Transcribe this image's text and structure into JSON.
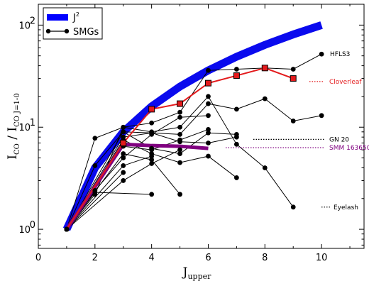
{
  "chart_data": {
    "type": "line",
    "xlabel": "J",
    "xlabel_sub": "upper",
    "ylabel_main": "I",
    "ylabel_sub1": "CO",
    "ylabel_mid": " / I",
    "ylabel_sub2": "CO J=1-0",
    "xlim": [
      0,
      11.5
    ],
    "ylim_log": [
      0.65,
      160
    ],
    "x_ticks": [
      0,
      2,
      4,
      6,
      8,
      10
    ],
    "x_tick_labels": [
      "0",
      "2",
      "4",
      "6",
      "8",
      "10"
    ],
    "y_ticks": [
      1,
      10,
      100
    ],
    "y_tick_labels": [
      "10",
      "10",
      "10"
    ],
    "y_tick_exponents": [
      "0",
      "1",
      "2"
    ],
    "y_scale": "log",
    "legend": {
      "placement": "top-left",
      "entries": [
        {
          "label": "J",
          "label_sup": "2",
          "color": "#0000ff"
        },
        {
          "label": "SMGs",
          "color": "#000000"
        }
      ]
    },
    "reference_curve": {
      "name": "J2",
      "color": "#0a0aee",
      "x": [
        1,
        2,
        3,
        4,
        5,
        6,
        7,
        8,
        9,
        10
      ],
      "y": [
        1,
        4,
        9,
        16,
        25,
        36,
        49,
        64,
        81,
        100
      ]
    },
    "smg_series": [
      {
        "x": [
          1,
          2,
          3,
          4,
          5,
          6,
          7,
          8,
          9,
          10
        ],
        "y": [
          1,
          7.8,
          10,
          11,
          14,
          36,
          37,
          38,
          37,
          52
        ]
      },
      {
        "x": [
          1,
          2,
          3,
          4,
          5,
          6,
          7,
          8,
          9,
          10
        ],
        "y": [
          1,
          4.2,
          9,
          8.8,
          8.5,
          17,
          15,
          19,
          11.5,
          13
        ]
      },
      {
        "x": [
          1,
          2,
          3,
          4,
          5,
          6,
          7,
          8,
          9
        ],
        "y": [
          1,
          2.2,
          10,
          9,
          10,
          20,
          6.8,
          4,
          1.65
        ]
      },
      {
        "x": [
          1,
          3,
          4,
          5,
          6,
          7
        ],
        "y": [
          1,
          9,
          6.2,
          5.5,
          8.8,
          8.5
        ]
      },
      {
        "x": [
          1,
          3,
          4,
          5,
          6,
          7
        ],
        "y": [
          1,
          8,
          8.8,
          7.2,
          7,
          8
        ]
      },
      {
        "x": [
          1,
          3,
          4,
          5,
          6,
          7
        ],
        "y": [
          1,
          7.5,
          5.5,
          4.5,
          5.2,
          3.2
        ]
      },
      {
        "x": [
          1,
          3,
          4,
          5,
          6
        ],
        "y": [
          1,
          6.5,
          6,
          7.5,
          9.5
        ]
      },
      {
        "x": [
          1,
          3,
          4,
          5
        ],
        "y": [
          1,
          5.5,
          4.8,
          2.2
        ]
      },
      {
        "x": [
          1,
          3,
          4
        ],
        "y": [
          1,
          4.2,
          5.2
        ]
      },
      {
        "x": [
          1,
          3,
          4,
          5
        ],
        "y": [
          1,
          3,
          4.4,
          6
        ]
      },
      {
        "x": [
          1,
          2,
          3,
          4,
          5,
          6
        ],
        "y": [
          1,
          2.4,
          5,
          8.5,
          12.5,
          13
        ]
      },
      {
        "x": [
          1,
          3
        ],
        "y": [
          1,
          3.6
        ]
      },
      {
        "x": [
          1,
          2,
          4
        ],
        "y": [
          1,
          2.3,
          2.2
        ]
      }
    ],
    "named_sources": [
      {
        "label": "HFLS3",
        "color": "#000000",
        "linestyle": "none",
        "y": 52
      },
      {
        "label": "Cloverleaf",
        "color": "#e31a1c",
        "linestyle": "dotted",
        "y": 30,
        "x": [
          1,
          3,
          4,
          5,
          6,
          7,
          8,
          9
        ],
        "values": [
          1,
          7,
          15,
          17,
          27,
          32,
          38,
          30
        ],
        "marker": "square"
      },
      {
        "label": "GN 20",
        "color": "#000000",
        "linestyle": "dotted",
        "y": 7.6
      },
      {
        "label": "SMM 163650",
        "color": "#800080",
        "linestyle": "dotted",
        "y": 6.3,
        "x": [
          1,
          3,
          4,
          5,
          6
        ],
        "values": [
          1,
          6.8,
          6.6,
          6.5,
          6.2
        ]
      },
      {
        "label": "Eyelash",
        "color": "#000000",
        "linestyle": "dotted",
        "y": 1.65
      }
    ]
  }
}
